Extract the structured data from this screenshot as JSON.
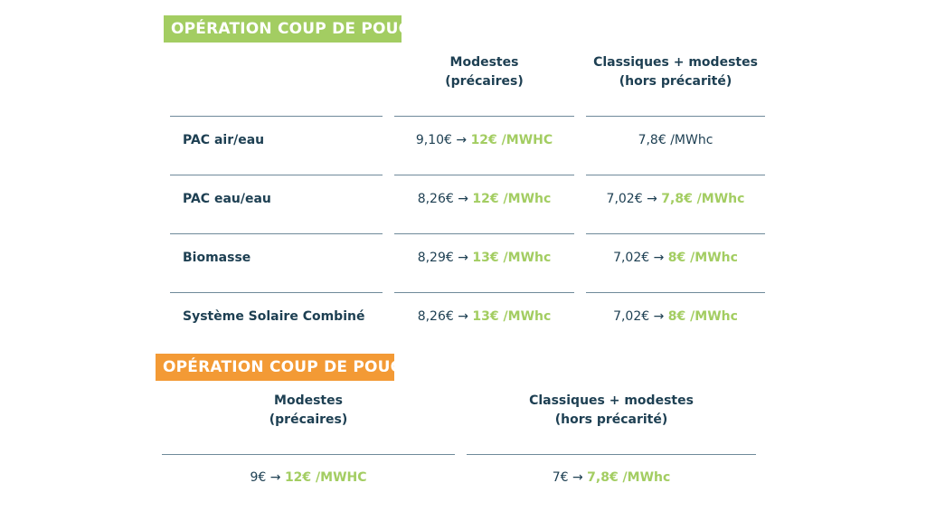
{
  "colors": {
    "green": "#a3cd62",
    "orange": "#f39a35",
    "text": "#1d3f52",
    "line": "#6f8a9a"
  },
  "table1": {
    "badge": "OPÉRATION COUP DE POUCE",
    "headers": [
      {
        "line1": "Modestes",
        "line2": "(précaires)"
      },
      {
        "line1": "Classiques + modestes",
        "line2": "(hors précarité)"
      }
    ],
    "rows": [
      {
        "label": "PAC air/eau",
        "modestes": {
          "old": "9,10€ →",
          "new": "12€ /MWHC"
        },
        "classiques": {
          "old": "7,8€ /MWhc",
          "new": ""
        }
      },
      {
        "label": "PAC eau/eau",
        "modestes": {
          "old": "8,26€ →",
          "new": "12€ /MWhc"
        },
        "classiques": {
          "old": "7,02€ →",
          "new": "7,8€ /MWhc"
        }
      },
      {
        "label": "Biomasse",
        "modestes": {
          "old": "8,29€ →",
          "new": "13€ /MWhc"
        },
        "classiques": {
          "old": "7,02€ →",
          "new": "8€ /MWhc"
        }
      },
      {
        "label": "Système Solaire Combiné",
        "modestes": {
          "old": "8,26€ →",
          "new": "13€ /MWhc"
        },
        "classiques": {
          "old": "7,02€ →",
          "new": "8€ /MWhc"
        }
      }
    ]
  },
  "table2": {
    "badge": "OPÉRATION COUP DE POUCE",
    "headers": [
      {
        "line1": "Modestes",
        "line2": "(précaires)"
      },
      {
        "line1": "Classiques + modestes",
        "line2": "(hors précarité)"
      }
    ],
    "values": [
      {
        "old": "9€ →",
        "new": "12€ /MWHC"
      },
      {
        "old": "7€ →",
        "new": "7,8€ /MWhc"
      }
    ]
  }
}
